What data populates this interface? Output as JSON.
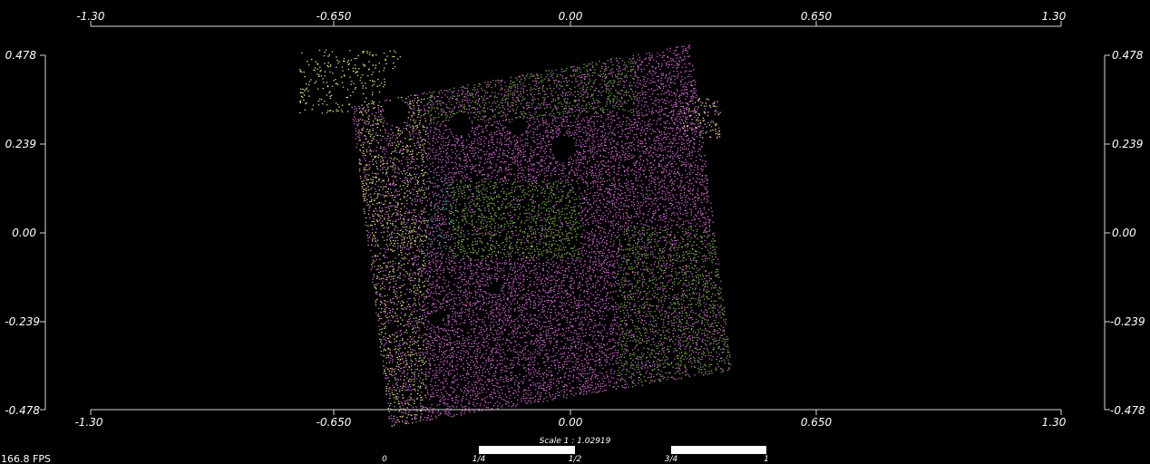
{
  "viewer": {
    "fps": "166.8 FPS",
    "scale_label": "Scale 1 : 1.02919",
    "scale_ticks": [
      "0",
      "1/4",
      "1/2",
      "3/4",
      "1"
    ]
  },
  "x_axis": {
    "ticks": [
      "-1.30",
      "-0.650",
      "0.00",
      "0.650",
      "1.30"
    ]
  },
  "y_axis": {
    "ticks": [
      "0.478",
      "0.239",
      "0.00",
      "-0.239",
      "-0.478"
    ]
  },
  "colors": {
    "background": "#000000",
    "axis": "#d8d8d8",
    "magenta": "#d46ad4",
    "green": "#7fb24a",
    "yellow": "#e6e68c",
    "cyan": "#6ab8c8"
  }
}
